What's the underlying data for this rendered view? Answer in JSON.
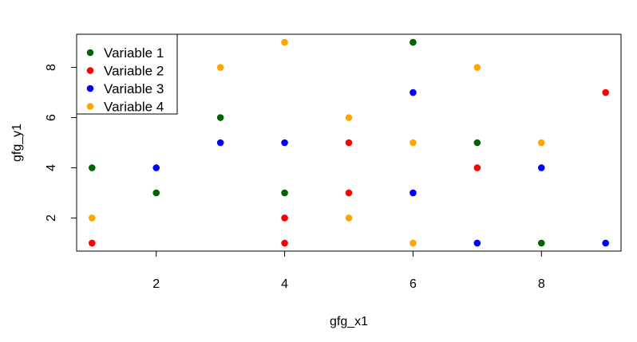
{
  "chart_data": {
    "type": "scatter",
    "title": "",
    "xlabel": "gfg_x1",
    "ylabel": "gfg_y1",
    "xlim": [
      0.76,
      9.24
    ],
    "ylim": [
      0.68,
      9.32
    ],
    "x_ticks": [
      2,
      4,
      6,
      8
    ],
    "y_ticks": [
      2,
      4,
      6,
      8
    ],
    "grid": false,
    "legend_position": "top-left",
    "series": [
      {
        "name": "Variable 1",
        "color": "#006400",
        "x": [
          1,
          2,
          3,
          4,
          6,
          7,
          8
        ],
        "y": [
          4,
          3,
          6,
          3,
          9,
          5,
          1
        ]
      },
      {
        "name": "Variable 2",
        "color": "#ff0000",
        "x": [
          1,
          4,
          4,
          5,
          5,
          7,
          9
        ],
        "y": [
          1,
          2,
          1,
          5,
          3,
          4,
          7
        ]
      },
      {
        "name": "Variable 3",
        "color": "#0000ff",
        "x": [
          2,
          3,
          4,
          6,
          6,
          7,
          8,
          9
        ],
        "y": [
          4,
          5,
          5,
          7,
          3,
          1,
          4,
          1
        ]
      },
      {
        "name": "Variable 4",
        "color": "#ffa500",
        "x": [
          1,
          3,
          4,
          5,
          5,
          6,
          6,
          7,
          8
        ],
        "y": [
          2,
          8,
          9,
          6,
          2,
          5,
          1,
          8,
          5
        ]
      }
    ]
  }
}
